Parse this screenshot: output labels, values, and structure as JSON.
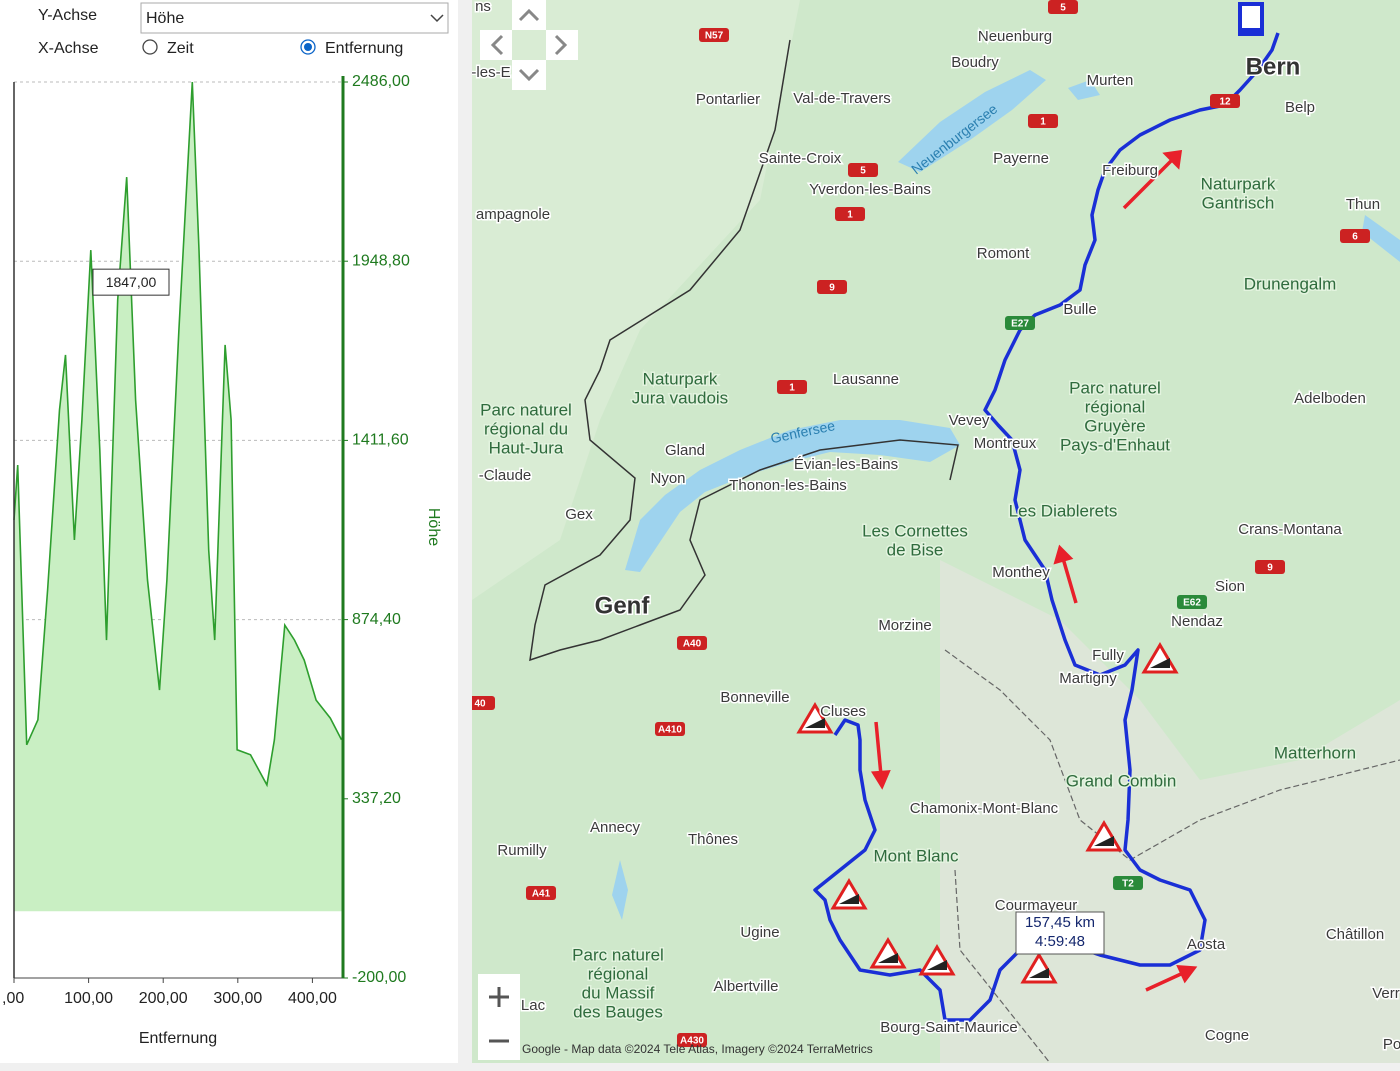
{
  "controls": {
    "y_axis_label": "Y-Achse",
    "y_axis_value": "Höhe",
    "x_axis_label": "X-Achse",
    "x_options": [
      "Zeit",
      "Entfernung"
    ],
    "x_selected": "Entfernung"
  },
  "chart_data": {
    "type": "area",
    "y_label": "Höhe",
    "x_label": "Entfernung",
    "color": "#2e9e2e",
    "fill": "#c9efc3",
    "grid": true,
    "x": [
      0,
      5,
      17,
      32,
      45,
      61,
      69,
      81,
      91,
      103,
      115,
      124,
      139,
      151,
      163,
      179,
      195,
      205,
      221,
      239,
      248,
      261,
      269,
      283,
      291,
      299,
      317,
      339,
      349,
      363,
      376,
      389,
      405,
      424,
      439
    ],
    "values": [
      1173,
      1338,
      499,
      574,
      963,
      1503,
      1668,
      1113,
      1473,
      1982,
      1383,
      813,
      1833,
      2201,
      1533,
      993,
      663,
      993,
      1743,
      2486,
      1982,
      1083,
      813,
      1698,
      1473,
      484,
      469,
      379,
      514,
      858,
      813,
      753,
      633,
      579,
      514
    ],
    "xlim": [
      0,
      441
    ],
    "ylim": [
      -200,
      2486
    ],
    "xticks": [
      {
        "value": 0,
        "label": ",00"
      },
      {
        "value": 100,
        "label": "100,00"
      },
      {
        "value": 200,
        "label": "200,00"
      },
      {
        "value": 300,
        "label": "300,00"
      },
      {
        "value": 400,
        "label": "400,00"
      }
    ],
    "yticks": [
      {
        "value": -200,
        "label": "-200,00"
      },
      {
        "value": 337.2,
        "label": "337,20"
      },
      {
        "value": 874.4,
        "label": "874,40"
      },
      {
        "value": 1411.6,
        "label": "1411,60"
      },
      {
        "value": 1948.8,
        "label": "1948,80"
      },
      {
        "value": 2486,
        "label": "2486,00"
      }
    ],
    "tooltip": {
      "value": 1847,
      "label": "1847,00"
    }
  },
  "map": {
    "places": [
      [
        "Neuenburg"
      ],
      [
        "Boudry"
      ],
      [
        "Bern"
      ],
      [
        "Murten"
      ],
      [
        "Belp"
      ],
      [
        "Pontarlier"
      ],
      [
        "Val-de-Travers"
      ],
      [
        "Neuenburgersee"
      ],
      [
        "Payerne"
      ],
      [
        "Sainte-Croix"
      ],
      [
        "Freiburg"
      ],
      [
        "Naturpark",
        "Gantrisch"
      ],
      [
        "Yverdon-les-Bains"
      ],
      [
        "Thun"
      ],
      [
        "ampagnole"
      ],
      [
        "Romont"
      ],
      [
        "Drunengalm"
      ],
      [
        "Bulle"
      ],
      [
        "Naturpark",
        "Jura vaudois"
      ],
      [
        "Lausanne"
      ],
      [
        "Parc naturel",
        "régional",
        "Gruyère",
        "Pays-d'Enhaut"
      ],
      [
        "Adelboden"
      ],
      [
        "Parc naturel",
        "régional du",
        "Haut-Jura"
      ],
      [
        "Vevey"
      ],
      [
        "Genfersee"
      ],
      [
        "Montreux"
      ],
      [
        "Gland"
      ],
      [
        "Évian-les-Bains"
      ],
      [
        "-Claude"
      ],
      [
        "Nyon"
      ],
      [
        "Thonon-les-Bains"
      ],
      [
        "Gex"
      ],
      [
        "Les Diablerets"
      ],
      [
        "Les Cornettes",
        "de Bise"
      ],
      [
        "Crans-Montana"
      ],
      [
        "Monthey"
      ],
      [
        "Sion"
      ],
      [
        "Genf"
      ],
      [
        "Nendaz"
      ],
      [
        "Morzine"
      ],
      [
        "Fully"
      ],
      [
        "Martigny"
      ],
      [
        "Bonneville"
      ],
      [
        "Cluses"
      ],
      [
        "Matterhorn"
      ],
      [
        "Grand Combin"
      ],
      [
        "Chamonix-Mont-Blanc"
      ],
      [
        "Annecy"
      ],
      [
        "Thônes"
      ],
      [
        "Rumilly"
      ],
      [
        "Mont Blanc"
      ],
      [
        "Courmayeur"
      ],
      [
        "Châtillon"
      ],
      [
        "Ugine"
      ],
      [
        "Aosta"
      ],
      [
        "Parc naturel",
        "régional",
        "du Massif",
        "des Bauges"
      ],
      [
        "Albertville"
      ],
      [
        "Bourg-Saint-Maurice"
      ],
      [
        "Cogne"
      ],
      [
        "Lac"
      ],
      [
        "ns"
      ],
      [
        "-les-E"
      ],
      [
        "Verr"
      ],
      [
        "Po"
      ]
    ],
    "road_shields": [
      "N57",
      "5",
      "1",
      "5",
      "1",
      "12",
      "9",
      "6",
      "1",
      "E27",
      "9",
      "E62",
      "A40",
      "A410",
      "A41",
      "A430",
      "T2",
      "40"
    ],
    "route_info": {
      "distance": "157,45 km",
      "duration": "4:59:48"
    },
    "attribution": "Google - Map data ©2024 Tele Atlas, Imagery ©2024 TerraMetrics"
  }
}
